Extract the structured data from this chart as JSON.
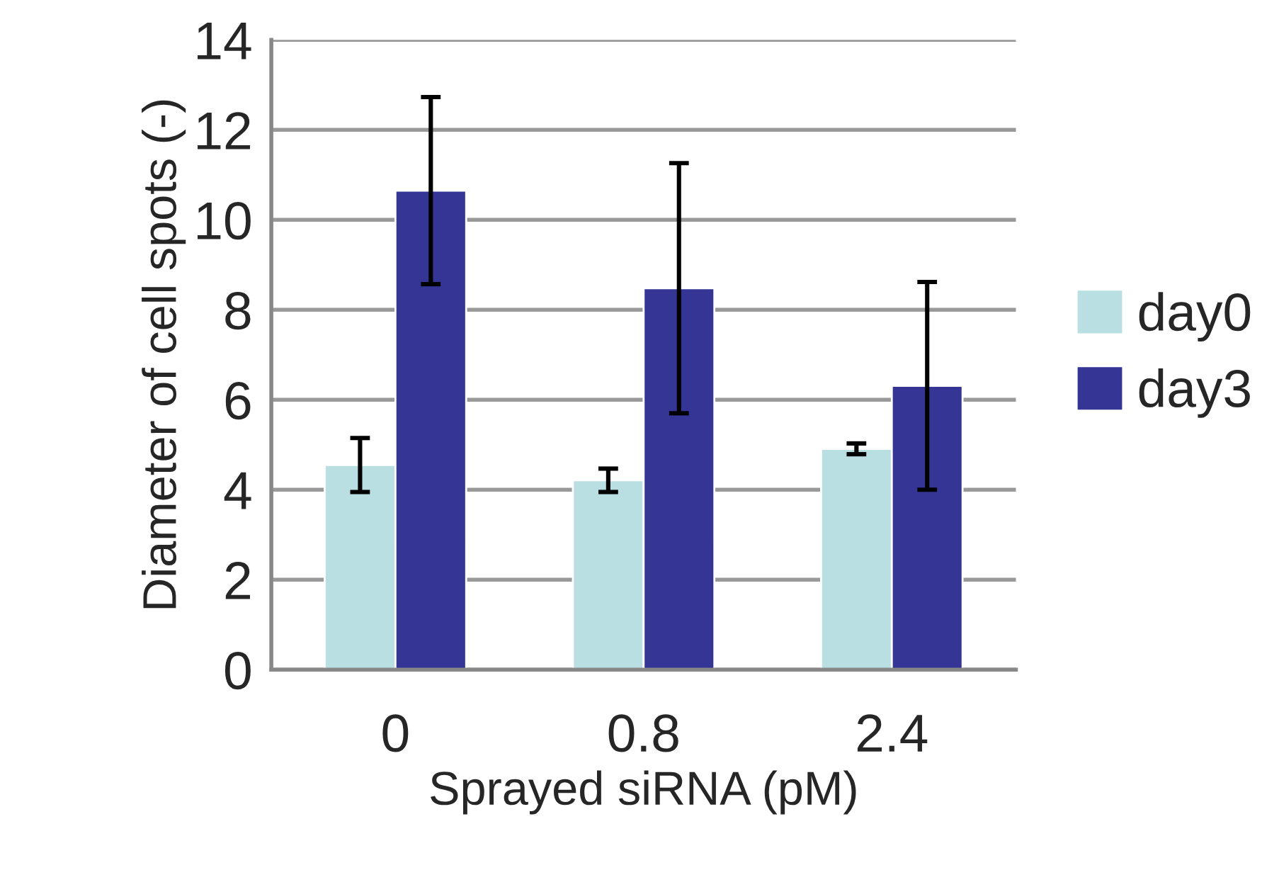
{
  "chart_data": {
    "type": "bar",
    "xlabel": "Sprayed siRNA (pM)",
    "ylabel": "Diameter of cell spots (-)",
    "categories": [
      "0",
      "0.8",
      "2.4"
    ],
    "series": [
      {
        "name": "day0",
        "color": "#b9dfe3",
        "values": [
          4.55,
          4.21,
          4.91
        ],
        "errors": [
          0.6,
          0.26,
          0.12
        ]
      },
      {
        "name": "day3",
        "color": "#353596",
        "values": [
          10.65,
          8.48,
          6.31
        ],
        "errors": [
          2.08,
          2.78,
          2.31
        ]
      }
    ],
    "ylim": [
      0,
      14
    ],
    "yticks": [
      0,
      2,
      4,
      6,
      8,
      10,
      12,
      14
    ],
    "grid": "y",
    "legend": "right"
  }
}
